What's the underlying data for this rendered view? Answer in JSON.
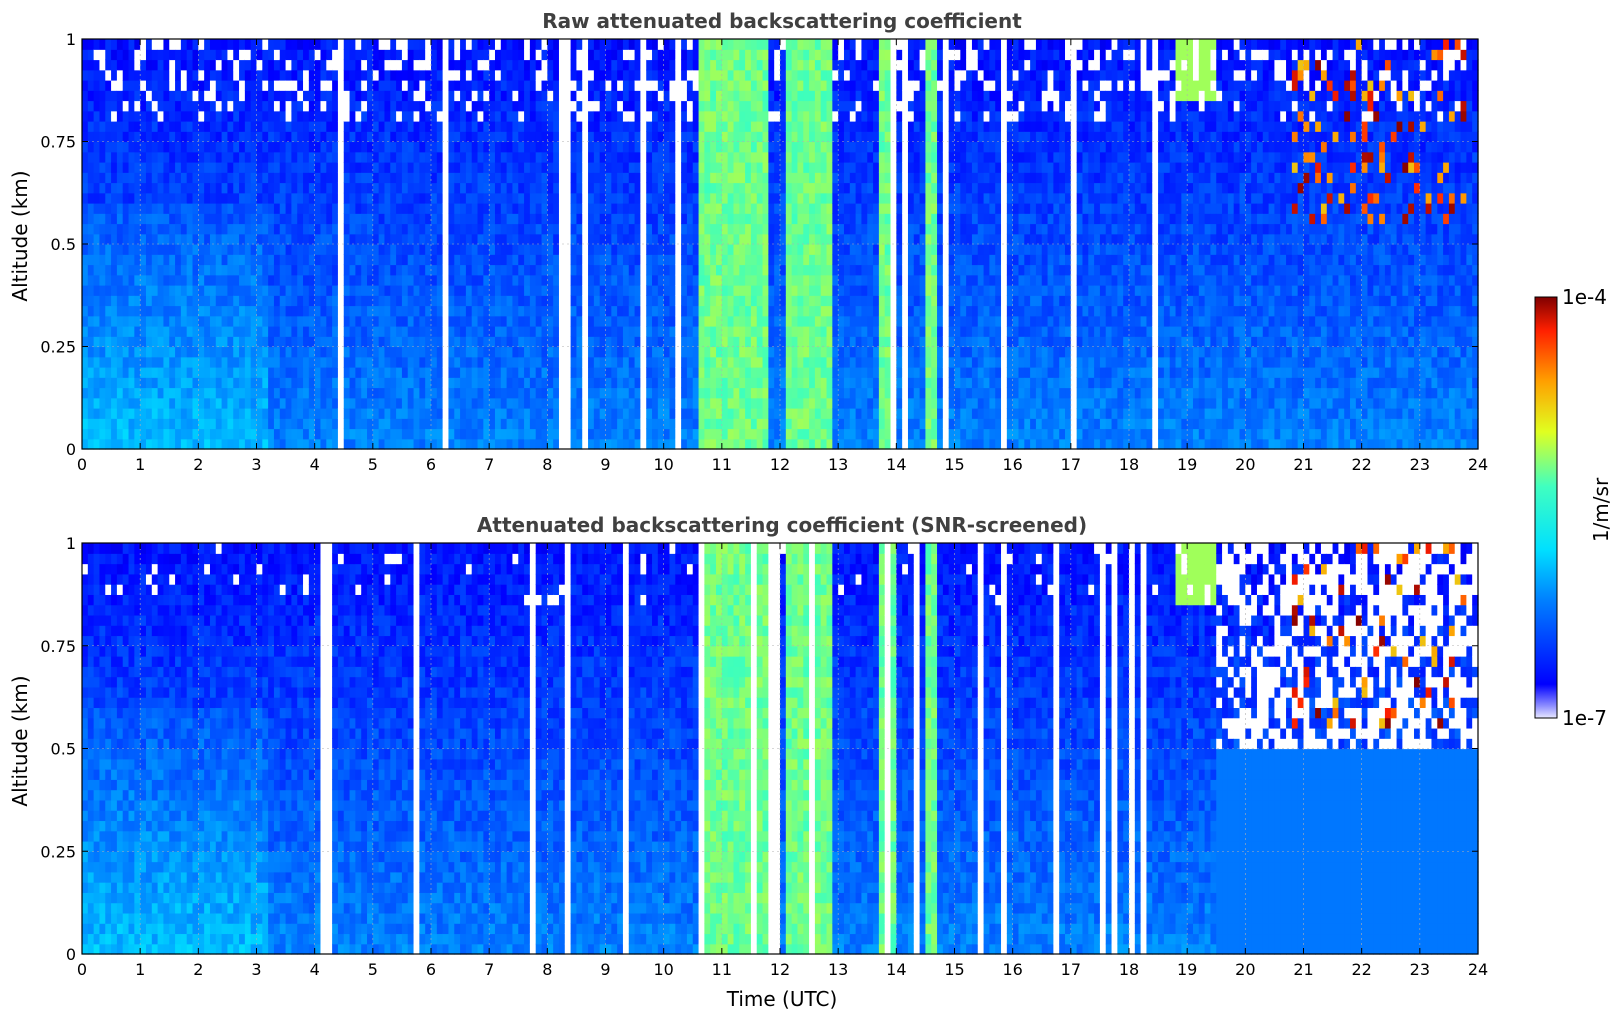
{
  "chart_data": [
    {
      "type": "heatmap",
      "title": "Raw attenuated backscattering coefficient",
      "xlabel": "",
      "ylabel": "Altitude (km)",
      "xlim": [
        0,
        24
      ],
      "ylim": [
        0,
        1
      ],
      "x_ticks": [
        "0",
        "1",
        "2",
        "3",
        "4",
        "5",
        "6",
        "7",
        "8",
        "9",
        "10",
        "11",
        "12",
        "13",
        "14",
        "15",
        "16",
        "17",
        "18",
        "19",
        "20",
        "21",
        "22",
        "23",
        "24"
      ],
      "y_ticks": [
        "0",
        "0.25",
        "0.5",
        "0.75",
        "1"
      ],
      "grid": true,
      "screened": false
    },
    {
      "type": "heatmap",
      "title": "Attenuated backscattering coefficient (SNR-screened)",
      "xlabel": "Time (UTC)",
      "ylabel": "Altitude (km)",
      "xlim": [
        0,
        24
      ],
      "ylim": [
        0,
        1
      ],
      "x_ticks": [
        "0",
        "1",
        "2",
        "3",
        "4",
        "5",
        "6",
        "7",
        "8",
        "9",
        "10",
        "11",
        "12",
        "13",
        "14",
        "15",
        "16",
        "17",
        "18",
        "19",
        "20",
        "21",
        "22",
        "23",
        "24"
      ],
      "y_ticks": [
        "0",
        "0.25",
        "0.5",
        "0.75",
        "1"
      ],
      "grid": true,
      "screened": true
    }
  ],
  "colorbar": {
    "label": "1/m/sr",
    "min_label": "1e-7",
    "max_label": "1e-4",
    "scale": "log",
    "colormap": "jet"
  }
}
